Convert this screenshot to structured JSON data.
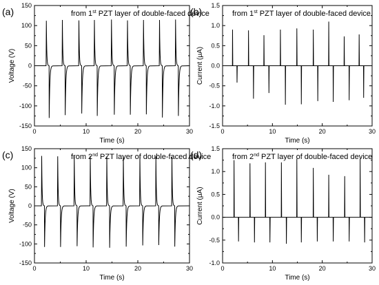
{
  "chart_data": [
    {
      "id": "a",
      "type": "line",
      "panel_label": "(a)",
      "title": {
        "pre": "from 1",
        "sup": "st",
        "post": "PZT layer of double-faced device"
      },
      "xlabel": "Time (s)",
      "ylabel": "Voltage (V)",
      "xlim": [
        0,
        30
      ],
      "ylim": [
        -150,
        150
      ],
      "xticks": [
        0,
        10,
        20,
        30
      ],
      "yticks": [
        -150,
        -100,
        -50,
        0,
        50,
        100,
        150
      ],
      "series": [
        {
          "kind": "voltage",
          "peaks": [
            {
              "t": 2.3,
              "pos": 112,
              "neg": -130
            },
            {
              "t": 5.4,
              "pos": 114,
              "neg": -123
            },
            {
              "t": 8.6,
              "pos": 113,
              "neg": -119
            },
            {
              "t": 11.6,
              "pos": 114,
              "neg": -125
            },
            {
              "t": 14.9,
              "pos": 115,
              "neg": -122
            },
            {
              "t": 18.0,
              "pos": 113,
              "neg": -122
            },
            {
              "t": 21.1,
              "pos": 114,
              "neg": -121
            },
            {
              "t": 24.2,
              "pos": 114,
              "neg": -129
            },
            {
              "t": 27.3,
              "pos": 115,
              "neg": -125
            }
          ]
        }
      ]
    },
    {
      "id": "b",
      "type": "line",
      "panel_label": "(b)",
      "title": {
        "pre": "from 1",
        "sup": "st",
        "post": "PZT layer of double-faced device"
      },
      "xlabel": "Time (s)",
      "ylabel": "Current (μA)",
      "xlim": [
        0,
        30
      ],
      "ylim": [
        -1.5,
        1.5
      ],
      "xticks": [
        0,
        10,
        20,
        30
      ],
      "yticks": [
        -1.5,
        -1.0,
        -0.5,
        0.0,
        0.5,
        1.0,
        1.5
      ],
      "series": [
        {
          "kind": "current",
          "pulses": [
            {
              "t": 2.0,
              "v": 0.9
            },
            {
              "t": 2.9,
              "v": -0.42
            },
            {
              "t": 5.2,
              "v": 0.88
            },
            {
              "t": 6.2,
              "v": -0.82
            },
            {
              "t": 8.3,
              "v": 0.76
            },
            {
              "t": 9.3,
              "v": -0.68
            },
            {
              "t": 11.6,
              "v": 0.9
            },
            {
              "t": 12.6,
              "v": -0.97
            },
            {
              "t": 14.9,
              "v": 0.93
            },
            {
              "t": 15.8,
              "v": -0.96
            },
            {
              "t": 18.2,
              "v": 0.9
            },
            {
              "t": 19.1,
              "v": -0.88
            },
            {
              "t": 21.3,
              "v": 1.1
            },
            {
              "t": 22.2,
              "v": -0.9
            },
            {
              "t": 24.4,
              "v": 0.73
            },
            {
              "t": 25.4,
              "v": -0.86
            },
            {
              "t": 27.4,
              "v": 0.78
            },
            {
              "t": 28.3,
              "v": -0.8
            }
          ]
        }
      ]
    },
    {
      "id": "c",
      "type": "line",
      "panel_label": "(c)",
      "title": {
        "pre": "from 2",
        "sup": "nd",
        "post": "PZT layer of double-faced device"
      },
      "xlabel": "Time (s)",
      "ylabel": "Voltage (V)",
      "xlim": [
        0,
        30
      ],
      "ylim": [
        -150,
        150
      ],
      "xticks": [
        0,
        10,
        20,
        30
      ],
      "yticks": [
        -150,
        -100,
        -50,
        0,
        50,
        100,
        150
      ],
      "series": [
        {
          "kind": "voltage",
          "peaks": [
            {
              "t": 1.4,
              "pos": 131,
              "neg": -108
            },
            {
              "t": 4.5,
              "pos": 130,
              "neg": -108
            },
            {
              "t": 7.7,
              "pos": 131,
              "neg": -106
            },
            {
              "t": 10.8,
              "pos": 131,
              "neg": -109
            },
            {
              "t": 14.0,
              "pos": 130,
              "neg": -110
            },
            {
              "t": 17.2,
              "pos": 130,
              "neg": -107
            },
            {
              "t": 20.4,
              "pos": 131,
              "neg": -104
            },
            {
              "t": 23.5,
              "pos": 130,
              "neg": -103
            },
            {
              "t": 26.6,
              "pos": 129,
              "neg": -107
            }
          ]
        }
      ]
    },
    {
      "id": "d",
      "type": "line",
      "panel_label": "(d)",
      "title": {
        "pre": "from 2",
        "sup": "nd",
        "post": "PZT layer of double-faced device"
      },
      "xlabel": "Time (s)",
      "ylabel": "Current (μA)",
      "xlim": [
        0,
        30
      ],
      "ylim": [
        -1.0,
        1.5
      ],
      "xticks": [
        0,
        10,
        20,
        30
      ],
      "yticks": [
        -1.0,
        -0.5,
        0.0,
        0.5,
        1.0,
        1.5
      ],
      "series": [
        {
          "kind": "current",
          "pulses": [
            {
              "t": 2.3,
              "v": 1.25
            },
            {
              "t": 3.2,
              "v": -0.53
            },
            {
              "t": 5.5,
              "v": 1.18
            },
            {
              "t": 6.4,
              "v": -0.55
            },
            {
              "t": 8.6,
              "v": 1.2
            },
            {
              "t": 9.5,
              "v": -0.55
            },
            {
              "t": 11.8,
              "v": 1.2
            },
            {
              "t": 12.8,
              "v": -0.58
            },
            {
              "t": 14.9,
              "v": 1.28
            },
            {
              "t": 15.8,
              "v": -0.55
            },
            {
              "t": 18.2,
              "v": 1.08
            },
            {
              "t": 19.0,
              "v": -0.53
            },
            {
              "t": 21.3,
              "v": 0.93
            },
            {
              "t": 22.2,
              "v": -0.53
            },
            {
              "t": 24.5,
              "v": 0.9
            },
            {
              "t": 25.4,
              "v": -0.53
            },
            {
              "t": 27.6,
              "v": 1.28
            },
            {
              "t": 28.5,
              "v": -0.55
            }
          ]
        }
      ]
    }
  ]
}
